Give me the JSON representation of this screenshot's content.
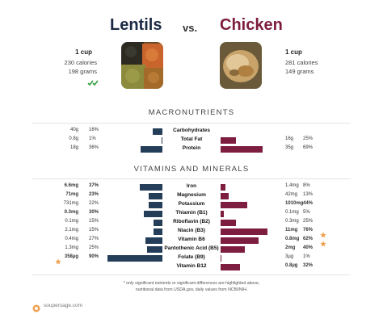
{
  "header": {
    "left_name": "Lentils",
    "vs": "vs.",
    "right_name": "Chicken",
    "left_serving": "1 cup",
    "left_calories": "230 calories",
    "left_grams": "198 grams",
    "right_serving": "1 cup",
    "right_calories": "281 calories",
    "right_grams": "149 grams",
    "left_winner_icon": "double-check-icon"
  },
  "sections": {
    "macros": "MACRONUTRIENTS",
    "vitamins": "VITAMINS AND MINERALS"
  },
  "colors": {
    "lentils": "#243d58",
    "chicken": "#7d1d3f",
    "star": "#f0a050"
  },
  "chart_data": {
    "type": "bar",
    "series": [
      {
        "name": "Lentils"
      },
      {
        "name": "Chicken"
      }
    ],
    "macronutrients": [
      {
        "name": "Carbohydrates",
        "left_value": "40g",
        "left_pct": "16%",
        "left_bold": false,
        "left_dv": 16,
        "right_value": "",
        "right_pct": "",
        "right_bold": false,
        "right_dv": 0
      },
      {
        "name": "Total Fat",
        "left_value": "0.8g",
        "left_pct": "1%",
        "left_bold": false,
        "left_dv": 1,
        "right_value": "16g",
        "right_pct": "25%",
        "right_bold": false,
        "right_dv": 25
      },
      {
        "name": "Protein",
        "left_value": "18g",
        "left_pct": "36%",
        "left_bold": false,
        "left_dv": 36,
        "right_value": "35g",
        "right_pct": "69%",
        "right_bold": false,
        "right_dv": 69
      }
    ],
    "vitamins": [
      {
        "name": "Iron",
        "left_value": "6.6mg",
        "left_pct": "37%",
        "left_bold": true,
        "left_dv": 37,
        "right_value": "1.4mg",
        "right_pct": "8%",
        "right_bold": false,
        "right_dv": 8
      },
      {
        "name": "Magnesium",
        "left_value": "71mg",
        "left_pct": "23%",
        "left_bold": true,
        "left_dv": 23,
        "right_value": "42mg",
        "right_pct": "13%",
        "right_bold": false,
        "right_dv": 13
      },
      {
        "name": "Potassium",
        "left_value": "731mg",
        "left_pct": "22%",
        "left_bold": false,
        "left_dv": 22,
        "right_value": "1010mg",
        "right_pct": "44%",
        "right_bold": true,
        "right_dv": 44
      },
      {
        "name": "Thiamin (B1)",
        "left_value": "0.3mg",
        "left_pct": "30%",
        "left_bold": true,
        "left_dv": 30,
        "right_value": "0.1mg",
        "right_pct": "5%",
        "right_bold": false,
        "right_dv": 5
      },
      {
        "name": "Riboflavin (B2)",
        "left_value": "0.1mg",
        "left_pct": "15%",
        "left_bold": false,
        "left_dv": 15,
        "right_value": "0.3mg",
        "right_pct": "25%",
        "right_bold": false,
        "right_dv": 25
      },
      {
        "name": "Niacin (B3)",
        "left_value": "2.1mg",
        "left_pct": "15%",
        "left_bold": false,
        "left_dv": 15,
        "right_value": "11mg",
        "right_pct": "76%",
        "right_bold": true,
        "right_dv": 76,
        "right_star": true
      },
      {
        "name": "Vitamin B6",
        "left_value": "0.4mg",
        "left_pct": "27%",
        "left_bold": false,
        "left_dv": 27,
        "right_value": "0.8mg",
        "right_pct": "62%",
        "right_bold": true,
        "right_dv": 62,
        "right_star": true
      },
      {
        "name": "Pantothenic Acid (B5)",
        "left_value": "1.3mg",
        "left_pct": "25%",
        "left_bold": false,
        "left_dv": 25,
        "right_value": "2mg",
        "right_pct": "40%",
        "right_bold": true,
        "right_dv": 40
      },
      {
        "name": "Folate (B9)",
        "left_value": "358µg",
        "left_pct": "90%",
        "left_bold": true,
        "left_dv": 90,
        "left_star": true,
        "right_value": "3µg",
        "right_pct": "1%",
        "right_bold": false,
        "right_dv": 1
      },
      {
        "name": "Vitamin B12",
        "left_value": "",
        "left_pct": "",
        "left_bold": false,
        "left_dv": 0,
        "right_value": "0.8µg",
        "right_pct": "32%",
        "right_bold": true,
        "right_dv": 32
      }
    ]
  },
  "footer": {
    "note_line1": "* only significant nutrients or significant differences are highlighted above,",
    "note_line2": "nutritional data from USDA.gov, daily values from NCBI/NIH.",
    "brand": "soupersage.com"
  }
}
